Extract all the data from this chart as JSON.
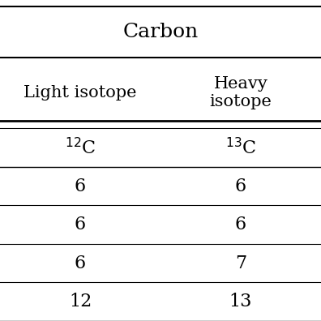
{
  "title": "Carbon",
  "col1_header": "Light isotope",
  "col2_header": "Heavy\nisotope",
  "isotope_row": [
    "$^{12}$C",
    "$^{13}$C"
  ],
  "data_rows": [
    [
      "6",
      "6"
    ],
    [
      "6",
      "6"
    ],
    [
      "6",
      "7"
    ],
    [
      "12",
      "13"
    ]
  ],
  "background_color": "#ffffff",
  "text_color": "#000000",
  "font_size": 15,
  "title_font_size": 18,
  "header_font_size": 15
}
